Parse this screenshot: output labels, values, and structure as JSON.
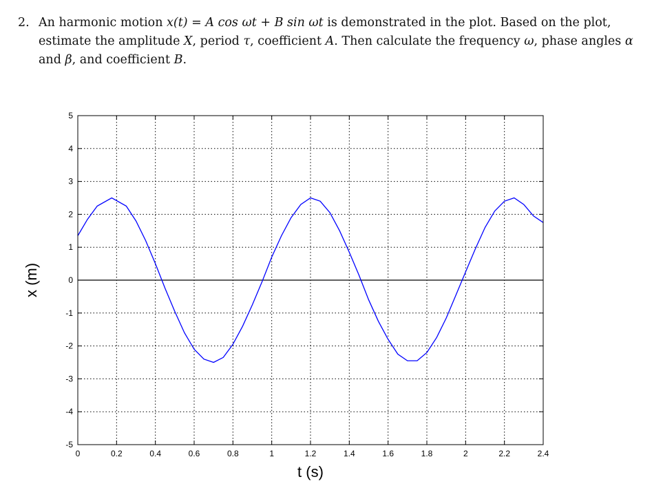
{
  "problem": {
    "number": "2.",
    "segments": [
      {
        "t": "An harmonic motion ",
        "m": false
      },
      {
        "t": "x(t) = A cos ωt + B sin ωt",
        "m": true
      },
      {
        "t": " is demonstrated in the plot. Based on the plot, estimate the amplitude ",
        "m": false
      },
      {
        "t": "X",
        "m": true
      },
      {
        "t": ", period ",
        "m": false
      },
      {
        "t": "τ",
        "m": true
      },
      {
        "t": ", coefficient ",
        "m": false
      },
      {
        "t": "A",
        "m": true
      },
      {
        "t": ".  Then calculate the frequency ",
        "m": false
      },
      {
        "t": "ω",
        "m": true
      },
      {
        "t": ", phase angles ",
        "m": false
      },
      {
        "t": "α",
        "m": true
      },
      {
        "t": " and ",
        "m": false
      },
      {
        "t": "β",
        "m": true
      },
      {
        "t": ", and coefficient ",
        "m": false
      },
      {
        "t": "B",
        "m": true
      },
      {
        "t": ".",
        "m": false
      }
    ]
  },
  "chart_data": {
    "type": "line",
    "xlabel": "t (s)",
    "ylabel": "x (m)",
    "xlim": [
      0,
      2.4
    ],
    "ylim": [
      -5,
      5
    ],
    "xticks": [
      0,
      0.2,
      0.4,
      0.6,
      0.8,
      1,
      1.2,
      1.4,
      1.6,
      1.8,
      2,
      2.2,
      2.4
    ],
    "xtick_labels": [
      "0",
      "0.2",
      "0.4",
      "0.6",
      "0.8",
      "1",
      "1.2",
      "1.4",
      "1.6",
      "1.8",
      "2",
      "2.2",
      "2.4"
    ],
    "yticks": [
      -5,
      -4,
      -3,
      -2,
      -1,
      0,
      1,
      2,
      3,
      4,
      5
    ],
    "ytick_labels": [
      "-5",
      "-4",
      "-3",
      "-2",
      "-1",
      "0",
      "1",
      "2",
      "3",
      "4",
      "5"
    ],
    "grid": true,
    "zero_line": true,
    "series": [
      {
        "color": "#0000ff",
        "x": [
          0,
          0.05,
          0.1,
          0.175,
          0.25,
          0.3,
          0.35,
          0.4,
          0.45,
          0.5,
          0.55,
          0.6,
          0.65,
          0.7,
          0.75,
          0.8,
          0.85,
          0.9,
          0.95,
          1.0,
          1.05,
          1.1,
          1.15,
          1.2,
          1.25,
          1.3,
          1.35,
          1.4,
          1.45,
          1.5,
          1.55,
          1.6,
          1.65,
          1.7,
          1.75,
          1.8,
          1.85,
          1.9,
          1.95,
          2.0,
          2.05,
          2.1,
          2.15,
          2.2,
          2.25,
          2.3,
          2.35,
          2.4
        ],
        "y": [
          1.35,
          1.85,
          2.25,
          2.5,
          2.25,
          1.8,
          1.2,
          0.5,
          -0.25,
          -0.95,
          -1.6,
          -2.1,
          -2.4,
          -2.5,
          -2.35,
          -1.95,
          -1.4,
          -0.75,
          -0.05,
          0.7,
          1.35,
          1.9,
          2.3,
          2.5,
          2.4,
          2.05,
          1.5,
          0.85,
          0.15,
          -0.6,
          -1.25,
          -1.8,
          -2.25,
          -2.45,
          -2.45,
          -2.2,
          -1.75,
          -1.15,
          -0.45,
          0.25,
          0.95,
          1.6,
          2.1,
          2.4,
          2.5,
          2.3,
          1.95,
          1.75
        ]
      }
    ]
  }
}
